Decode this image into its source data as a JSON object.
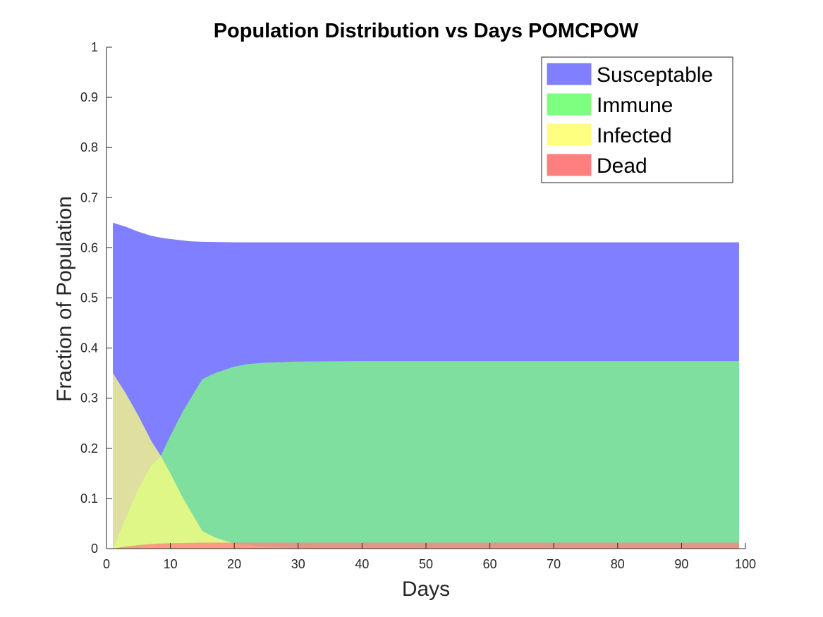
{
  "chart_data": {
    "type": "area",
    "title": "Population Distribution vs Days POMCPOW",
    "xlabel": "Days",
    "ylabel": "Fraction of Population",
    "xlim": [
      0,
      100
    ],
    "ylim": [
      0,
      1
    ],
    "xticks": [
      0,
      10,
      20,
      30,
      40,
      50,
      60,
      70,
      80,
      90,
      100
    ],
    "yticks": [
      0,
      0.1,
      0.2,
      0.3,
      0.4,
      0.5,
      0.6,
      0.7,
      0.8,
      0.9,
      1
    ],
    "xtick_labels": [
      "0",
      "10",
      "20",
      "30",
      "40",
      "50",
      "60",
      "70",
      "80",
      "90",
      "100"
    ],
    "ytick_labels": [
      "0",
      "0.1",
      "0.2",
      "0.3",
      "0.4",
      "0.5",
      "0.6",
      "0.7",
      "0.8",
      "0.9",
      "1"
    ],
    "grid": false,
    "legend_position": "top-right",
    "series": [
      {
        "name": "Susceptable",
        "color": "#7f7fff",
        "points": [
          [
            1,
            0.65
          ],
          [
            3,
            0.642
          ],
          [
            5,
            0.632
          ],
          [
            7,
            0.624
          ],
          [
            9,
            0.619
          ],
          [
            11,
            0.616
          ],
          [
            13,
            0.613
          ],
          [
            15,
            0.612
          ],
          [
            20,
            0.611
          ],
          [
            30,
            0.611
          ],
          [
            50,
            0.611
          ],
          [
            75,
            0.611
          ],
          [
            99,
            0.611
          ]
        ]
      },
      {
        "name": "Immune",
        "color": "#7fff7f",
        "points": [
          [
            1,
            0.0
          ],
          [
            3,
            0.06
          ],
          [
            5,
            0.12
          ],
          [
            7,
            0.165
          ],
          [
            8.5,
            0.185
          ],
          [
            10,
            0.225
          ],
          [
            12,
            0.275
          ],
          [
            15,
            0.338
          ],
          [
            17,
            0.35
          ],
          [
            20,
            0.363
          ],
          [
            22,
            0.368
          ],
          [
            25,
            0.371
          ],
          [
            30,
            0.373
          ],
          [
            40,
            0.374
          ],
          [
            60,
            0.374
          ],
          [
            99,
            0.374
          ]
        ]
      },
      {
        "name": "Infected",
        "color": "#ffff7f",
        "points": [
          [
            1,
            0.35
          ],
          [
            3,
            0.31
          ],
          [
            5,
            0.265
          ],
          [
            7,
            0.215
          ],
          [
            8.5,
            0.185
          ],
          [
            10,
            0.15
          ],
          [
            12,
            0.1
          ],
          [
            15,
            0.035
          ],
          [
            17,
            0.022
          ],
          [
            20,
            0.01
          ],
          [
            25,
            0.004
          ],
          [
            30,
            0.001
          ],
          [
            40,
            0.0
          ],
          [
            99,
            0.0
          ]
        ]
      },
      {
        "name": "Dead",
        "color": "#ff7f7f",
        "points": [
          [
            1,
            0.0
          ],
          [
            3,
            0.004
          ],
          [
            5,
            0.007
          ],
          [
            8,
            0.01
          ],
          [
            11,
            0.011
          ],
          [
            15,
            0.012
          ],
          [
            20,
            0.012
          ],
          [
            30,
            0.012
          ],
          [
            50,
            0.012
          ],
          [
            99,
            0.012
          ]
        ]
      }
    ]
  }
}
